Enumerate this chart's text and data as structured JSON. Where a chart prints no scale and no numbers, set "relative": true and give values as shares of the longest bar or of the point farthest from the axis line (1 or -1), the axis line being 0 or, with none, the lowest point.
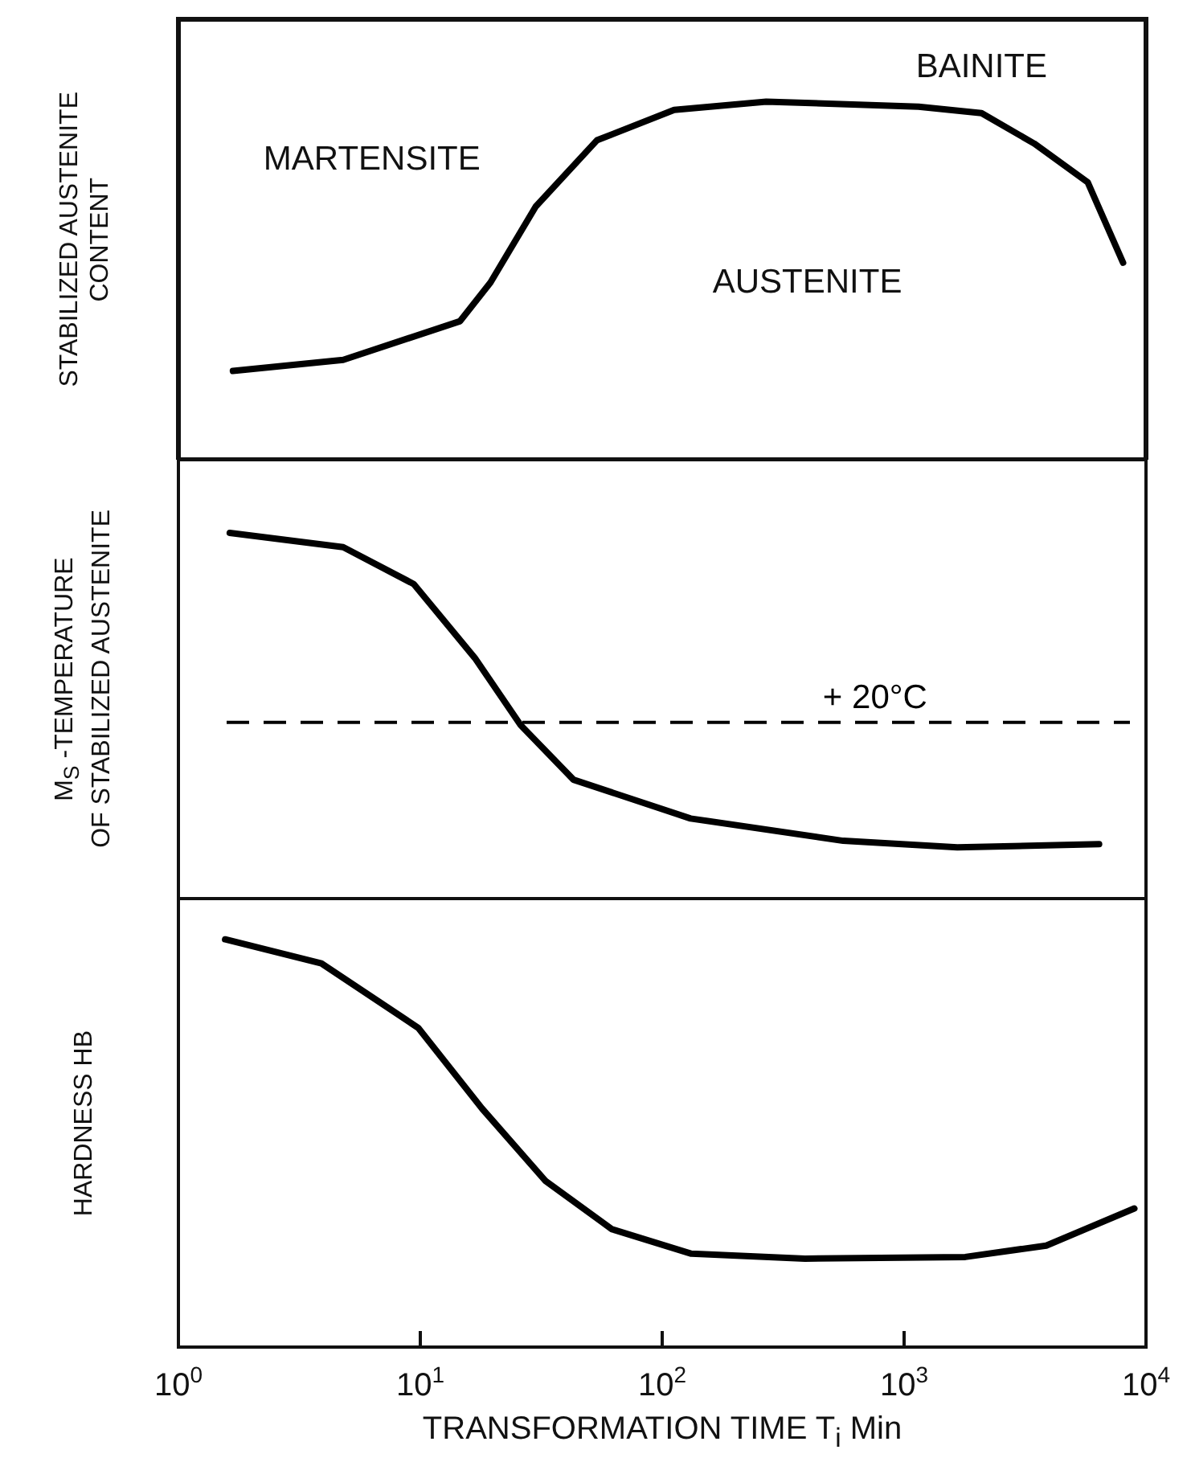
{
  "chart_data": [
    {
      "type": "line",
      "relative": true,
      "ylabel": "STABILIZED AUSTENITE\nCONTENT",
      "xlim": [
        1,
        10000
      ],
      "log": "x",
      "tick_labels": false,
      "legend": false,
      "marker": "none",
      "annotations": [
        "MARTENSITE",
        "BAINITE",
        "AUSTENITE"
      ],
      "x": [
        1.68,
        4.8,
        14.6,
        19.5,
        30,
        53.7,
        112,
        269,
        1148,
        2090,
        3450,
        5740,
        8040
      ],
      "series": [
        {
          "color": "#000000",
          "values": [
            0.248,
            0.279,
            0.387,
            0.495,
            0.707,
            0.892,
            0.977,
            1,
            0.986,
            0.968,
            0.883,
            0.775,
            0.55
          ]
        }
      ]
    },
    {
      "type": "line",
      "relative": true,
      "ylabel": "M$_{S}$ -TEMPERATURE\nOF STABILIZED AUSTENITE",
      "xlim": [
        1,
        10000
      ],
      "log": "x",
      "tick_labels": false,
      "legend": false,
      "marker": "none",
      "ref_lines": [
        {
          "axis": "y",
          "value": 0.482,
          "label": "+ 20°C",
          "color": "#000000",
          "line_style": "dashed"
        }
      ],
      "x": [
        1.63,
        4.8,
        9.4,
        16.8,
        26,
        43,
        131,
        560,
        1660,
        6400
      ],
      "series": [
        {
          "color": "#000000",
          "values": [
            1,
            0.961,
            0.86,
            0.658,
            0.474,
            0.325,
            0.219,
            0.158,
            0.14,
            0.149
          ]
        }
      ]
    },
    {
      "type": "line",
      "relative": true,
      "ylabel": "HARDNESS HB",
      "xlabel": "TRANSFORMATION TIME T$_{i}$ Min",
      "xlim": [
        1,
        10000
      ],
      "log": "x",
      "tick_labels": "x",
      "legend": false,
      "marker": "none",
      "xticks": [
        {
          "value": 1,
          "label": "10$^{0}$"
        },
        {
          "value": 10,
          "label": "10$^{1}$"
        },
        {
          "value": 100,
          "label": "10$^{2}$"
        },
        {
          "value": 1000,
          "label": "10$^{3}$"
        },
        {
          "value": 10000,
          "label": "10$^{4}$"
        }
      ],
      "x": [
        1.56,
        3.9,
        9.8,
        18,
        33,
        62,
        132,
        389,
        1790,
        3870,
        8950
      ],
      "series": [
        {
          "color": "#000000",
          "values": [
            1,
            0.941,
            0.783,
            0.585,
            0.407,
            0.289,
            0.229,
            0.217,
            0.221,
            0.249,
            0.34
          ]
        }
      ]
    }
  ]
}
